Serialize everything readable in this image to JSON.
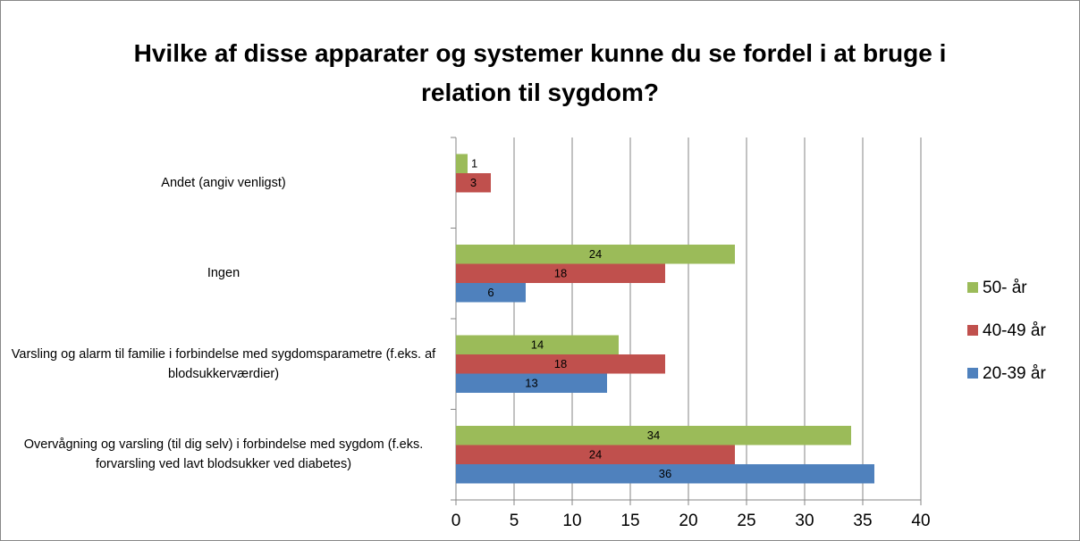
{
  "chart_data": {
    "type": "bar",
    "orientation": "horizontal",
    "title": "Hvilke af disse apparater og systemer kunne du se fordel i at bruge i relation til sygdom?",
    "categories": [
      "Overvågning og varsling (til dig selv) i forbindelse med sygdom (f.eks. forvarsling ved lavt blodsukker ved diabetes)",
      "Varsling og alarm til familie i forbindelse med sygdomsparametre (f.eks. af blodsukkerværdier)",
      "Ingen",
      "Andet (angiv venligst)"
    ],
    "series": [
      {
        "name": "20-39 år",
        "color": "#4f81bd",
        "values": [
          36,
          13,
          6,
          null
        ]
      },
      {
        "name": "40-49 år",
        "color": "#c0504d",
        "values": [
          24,
          18,
          18,
          3
        ]
      },
      {
        "name": "50- år",
        "color": "#9bbb59",
        "values": [
          34,
          14,
          24,
          1
        ]
      }
    ],
    "xlim": [
      0,
      40
    ],
    "xticks": [
      0,
      5,
      10,
      15,
      20,
      25,
      30,
      35,
      40
    ],
    "grid": true,
    "legend": "right"
  }
}
